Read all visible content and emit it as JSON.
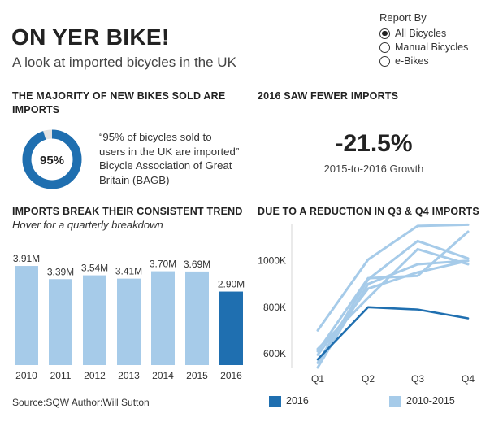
{
  "header": {
    "title": "ON YER BIKE!",
    "subtitle": "A look at imported bicycles in the UK"
  },
  "report_by": {
    "label": "Report By",
    "options": [
      "All Bicycles",
      "Manual Bicycles",
      "e-Bikes"
    ],
    "selected": "All Bicycles"
  },
  "majority_section": {
    "title_line1": "THE MAJORITY OF NEW BIKES SOLD ARE",
    "title_line2": "IMPORTS",
    "donut_value": 95,
    "donut_label": "95%",
    "quote_line1": "“95% of bicycles sold to",
    "quote_line2": "users in the UK are imported”",
    "quote_line3": "Bicycle Association of Great",
    "quote_line4": "Britain (BAGB)"
  },
  "fewer_imports_section": {
    "title": "2016 SAW FEWER IMPORTS",
    "value": "-21.5%",
    "caption": "2015-to-2016 Growth"
  },
  "trend_section": {
    "title": "IMPORTS BREAK THEIR CONSISTENT TREND",
    "note": "Hover for a quarterly breakdown"
  },
  "quarter_section": {
    "title": "DUE TO A REDUCTION IN Q3 & Q4 IMPORTS"
  },
  "colors": {
    "highlight": "#1f6fb0",
    "muted": "#a6cbe9"
  },
  "chart_data": [
    {
      "type": "bar",
      "categories": [
        "2010",
        "2011",
        "2012",
        "2013",
        "2014",
        "2015",
        "2016"
      ],
      "values": [
        3.91,
        3.39,
        3.54,
        3.41,
        3.7,
        3.69,
        2.9
      ],
      "data_labels": [
        "3.91M",
        "3.39M",
        "3.54M",
        "3.41M",
        "3.70M",
        "3.69M",
        "2.90M"
      ],
      "highlight_category": "2016",
      "ylim": [
        0,
        4.2
      ]
    },
    {
      "type": "line",
      "x": [
        "Q1",
        "Q2",
        "Q3",
        "Q4"
      ],
      "ylim": [
        540000,
        1160000
      ],
      "yticks": [
        600000,
        800000,
        1000000
      ],
      "ytick_labels": [
        "600K",
        "800K",
        "1000K"
      ],
      "series": [
        {
          "group": "2016",
          "values": [
            575000,
            800000,
            790000,
            752000
          ]
        },
        {
          "group": "2010-2015",
          "values": [
            700000,
            1005000,
            1150000,
            1155000
          ]
        },
        {
          "group": "2010-2015",
          "values": [
            560000,
            920000,
            1085000,
            1010000
          ]
        },
        {
          "group": "2010-2015",
          "values": [
            540000,
            900000,
            985000,
            1000000
          ]
        },
        {
          "group": "2010-2015",
          "values": [
            610000,
            925000,
            935000,
            1125000
          ]
        },
        {
          "group": "2010-2015",
          "values": [
            620000,
            840000,
            1050000,
            985000
          ]
        },
        {
          "group": "2010-2015",
          "values": [
            595000,
            880000,
            950000,
            1000000
          ]
        }
      ],
      "legend": [
        "2016",
        "2010-2015"
      ],
      "legend_position": "bottom"
    }
  ]
}
